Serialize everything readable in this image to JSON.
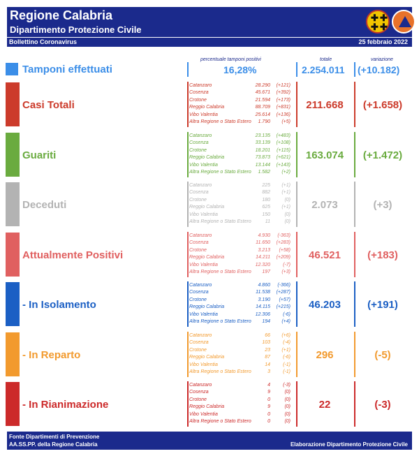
{
  "header": {
    "title": "Regione Calabria",
    "subtitle": "Dipartimento Protezione Civile",
    "bulletin": "Bollettino Coronavirus",
    "date": "25 febbraio 2022"
  },
  "columns": {
    "pct_label": "percentuale tamponi positivi",
    "total_label": "totale",
    "var_label": "variazione"
  },
  "tamponi": {
    "title": "Tamponi effettuati",
    "pct": "16,28%",
    "total": "2.254.011",
    "variation": "(+10.182)",
    "color": "#3b8ee8"
  },
  "blocks": [
    {
      "title": "Casi Totali",
      "color": "#cc3b2b",
      "total": "211.668",
      "variation": "(+1.658)",
      "rows": [
        {
          "name": "Catanzaro",
          "num": "28.290",
          "delta": "(+121)"
        },
        {
          "name": "Cosenza",
          "num": "45.671",
          "delta": "(+392)"
        },
        {
          "name": "Crotone",
          "num": "21.594",
          "delta": "(+173)"
        },
        {
          "name": "Reggio Calabria",
          "num": "88.709",
          "delta": "(+831)"
        },
        {
          "name": "Vibo Valentia",
          "num": "25.614",
          "delta": "(+136)"
        },
        {
          "name": "Altra Regione o Stato Estero",
          "num": "1.790",
          "delta": "(+5)"
        }
      ]
    },
    {
      "title": "Guariti",
      "color": "#6aab3f",
      "total": "163.074",
      "variation": "(+1.472)",
      "rows": [
        {
          "name": "Catanzaro",
          "num": "23.135",
          "delta": "(+483)"
        },
        {
          "name": "Cosenza",
          "num": "33.139",
          "delta": "(+108)"
        },
        {
          "name": "Crotone",
          "num": "18.201",
          "delta": "(+115)"
        },
        {
          "name": "Reggio Calabria",
          "num": "73.873",
          "delta": "(+621)"
        },
        {
          "name": "Vibo Valentia",
          "num": "13.144",
          "delta": "(+143)"
        },
        {
          "name": "Altra Regione o Stato Estero",
          "num": "1.582",
          "delta": "(+2)"
        }
      ]
    },
    {
      "title": "Deceduti",
      "color": "#b3b3b3",
      "total": "2.073",
      "variation": "(+3)",
      "rows": [
        {
          "name": "Catanzaro",
          "num": "225",
          "delta": "(+1)"
        },
        {
          "name": "Cosenza",
          "num": "882",
          "delta": "(+1)"
        },
        {
          "name": "Crotone",
          "num": "180",
          "delta": "(0)"
        },
        {
          "name": "Reggio Calabria",
          "num": "625",
          "delta": "(+1)"
        },
        {
          "name": "Vibo Valentia",
          "num": "150",
          "delta": "(0)"
        },
        {
          "name": "Altra Regione o Stato Estero",
          "num": "11",
          "delta": "(0)"
        }
      ]
    },
    {
      "title": "Attualmente Positivi",
      "color": "#e06060",
      "total": "46.521",
      "variation": "(+183)",
      "rows": [
        {
          "name": "Catanzaro",
          "num": "4.930",
          "delta": "(-363)"
        },
        {
          "name": "Cosenza",
          "num": "11.650",
          "delta": "(+283)"
        },
        {
          "name": "Crotone",
          "num": "3.213",
          "delta": "(+58)"
        },
        {
          "name": "Reggio Calabria",
          "num": "14.211",
          "delta": "(+209)"
        },
        {
          "name": "Vibo Valentia",
          "num": "12.320",
          "delta": "(-7)"
        },
        {
          "name": "Altra Regione o Stato Estero",
          "num": "197",
          "delta": "(+3)"
        }
      ]
    },
    {
      "title": " - In Isolamento",
      "color": "#1b5fc4",
      "total": "46.203",
      "variation": "(+191)",
      "rows": [
        {
          "name": "Catanzaro",
          "num": "4.860",
          "delta": "(-366)"
        },
        {
          "name": "Cosenza",
          "num": "11.538",
          "delta": "(+287)"
        },
        {
          "name": "Crotone",
          "num": "3.190",
          "delta": "(+57)"
        },
        {
          "name": "Reggio Calabria",
          "num": "14.115",
          "delta": "(+215)"
        },
        {
          "name": "Vibo Valentia",
          "num": "12.306",
          "delta": "(-6)"
        },
        {
          "name": "Altra Regione o Stato Estero",
          "num": "194",
          "delta": "(+4)"
        }
      ]
    },
    {
      "title": " - In Reparto",
      "color": "#f29a2e",
      "total": "296",
      "variation": "(-5)",
      "rows": [
        {
          "name": "Catanzaro",
          "num": "66",
          "delta": "(+6)"
        },
        {
          "name": "Cosenza",
          "num": "103",
          "delta": "(-4)"
        },
        {
          "name": "Crotone",
          "num": "23",
          "delta": "(+1)"
        },
        {
          "name": "Reggio Calabria",
          "num": "87",
          "delta": "(-6)"
        },
        {
          "name": "Vibo Valentia",
          "num": "14",
          "delta": "(-1)"
        },
        {
          "name": "Altra Regione o Stato Estero",
          "num": "3",
          "delta": "(-1)"
        }
      ]
    },
    {
      "title": " - In Rianimazione",
      "color": "#cc2a2a",
      "total": "22",
      "variation": "(-3)",
      "rows": [
        {
          "name": "Catanzaro",
          "num": "4",
          "delta": "(-3)"
        },
        {
          "name": "Cosenza",
          "num": "9",
          "delta": "(0)"
        },
        {
          "name": "Crotone",
          "num": "0",
          "delta": "(0)"
        },
        {
          "name": "Reggio Calabria",
          "num": "9",
          "delta": "(0)"
        },
        {
          "name": "Vibo Valentia",
          "num": "0",
          "delta": "(0)"
        },
        {
          "name": "Altra Regione o Stato Estero",
          "num": "0",
          "delta": "(0)"
        }
      ]
    }
  ],
  "footer": {
    "source1": "Fonte Dipartimenti di Prevenzione",
    "source2": "AA.SS.PP.  della Regione Calabria",
    "credit": "Elaborazione Dipartimento Protezione Civile"
  }
}
